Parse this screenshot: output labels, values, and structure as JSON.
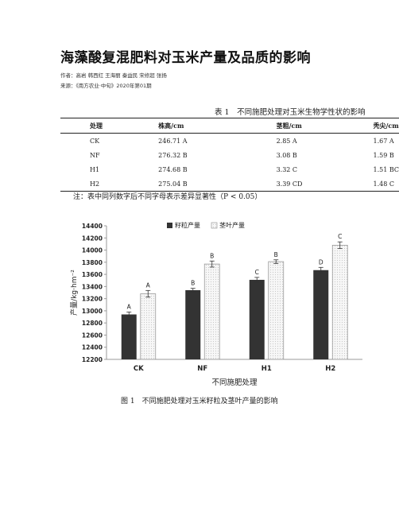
{
  "article": {
    "title": "海藻酸复混肥料对玉米产量及品质的影响",
    "authors": "作者：高岩 韩西红 王海丽 秦益民 宋修超 张扬",
    "source": "来源：《南方农业·中旬》2020年第01期"
  },
  "table": {
    "caption": "表 1　不同施肥处理对玉米生物学性状的影响",
    "headers": [
      "处理",
      "株高/cm",
      "茎粗/cm",
      "秃尖/cm"
    ],
    "rows": [
      [
        "CK",
        "246.71 A",
        "2.85 A",
        "1.67 A"
      ],
      [
        "NF",
        "276.32 B",
        "3.08 B",
        "1.59 B"
      ],
      [
        "H1",
        "274.68 B",
        "3.32 C",
        "1.51 BC"
      ],
      [
        "H2",
        "275.04 B",
        "3.39 CD",
        "1.48 C"
      ]
    ],
    "note": "注：表中同列数字后不同字母表示差异显著性（P < 0.05）"
  },
  "chart_data": {
    "type": "bar",
    "categories": [
      "CK",
      "NF",
      "H1",
      "H2"
    ],
    "series": [
      {
        "name": "籽粒产量",
        "values": [
          12940,
          13340,
          13510,
          13670
        ],
        "errors": [
          40,
          30,
          40,
          45
        ],
        "letters": [
          "A",
          "B",
          "C",
          "D"
        ],
        "color": "#333333"
      },
      {
        "name": "茎叶产量",
        "values": [
          13280,
          13770,
          13810,
          14080
        ],
        "errors": [
          55,
          50,
          30,
          55
        ],
        "letters": [
          "A",
          "B",
          "B",
          "C"
        ],
        "color": "#f4f4f4"
      }
    ],
    "ylim": [
      12200,
      14400
    ],
    "yticks": [
      12200,
      12400,
      12600,
      12800,
      13000,
      13200,
      13400,
      13600,
      13800,
      14000,
      14200,
      14400
    ],
    "xlabel": "不同施肥处理",
    "ylabel": "产量/kg·hm⁻²",
    "legend": "top",
    "grid": false
  },
  "figure": {
    "caption": "图 1　不同施肥处理对玉米籽粒及茎叶产量的影响"
  }
}
